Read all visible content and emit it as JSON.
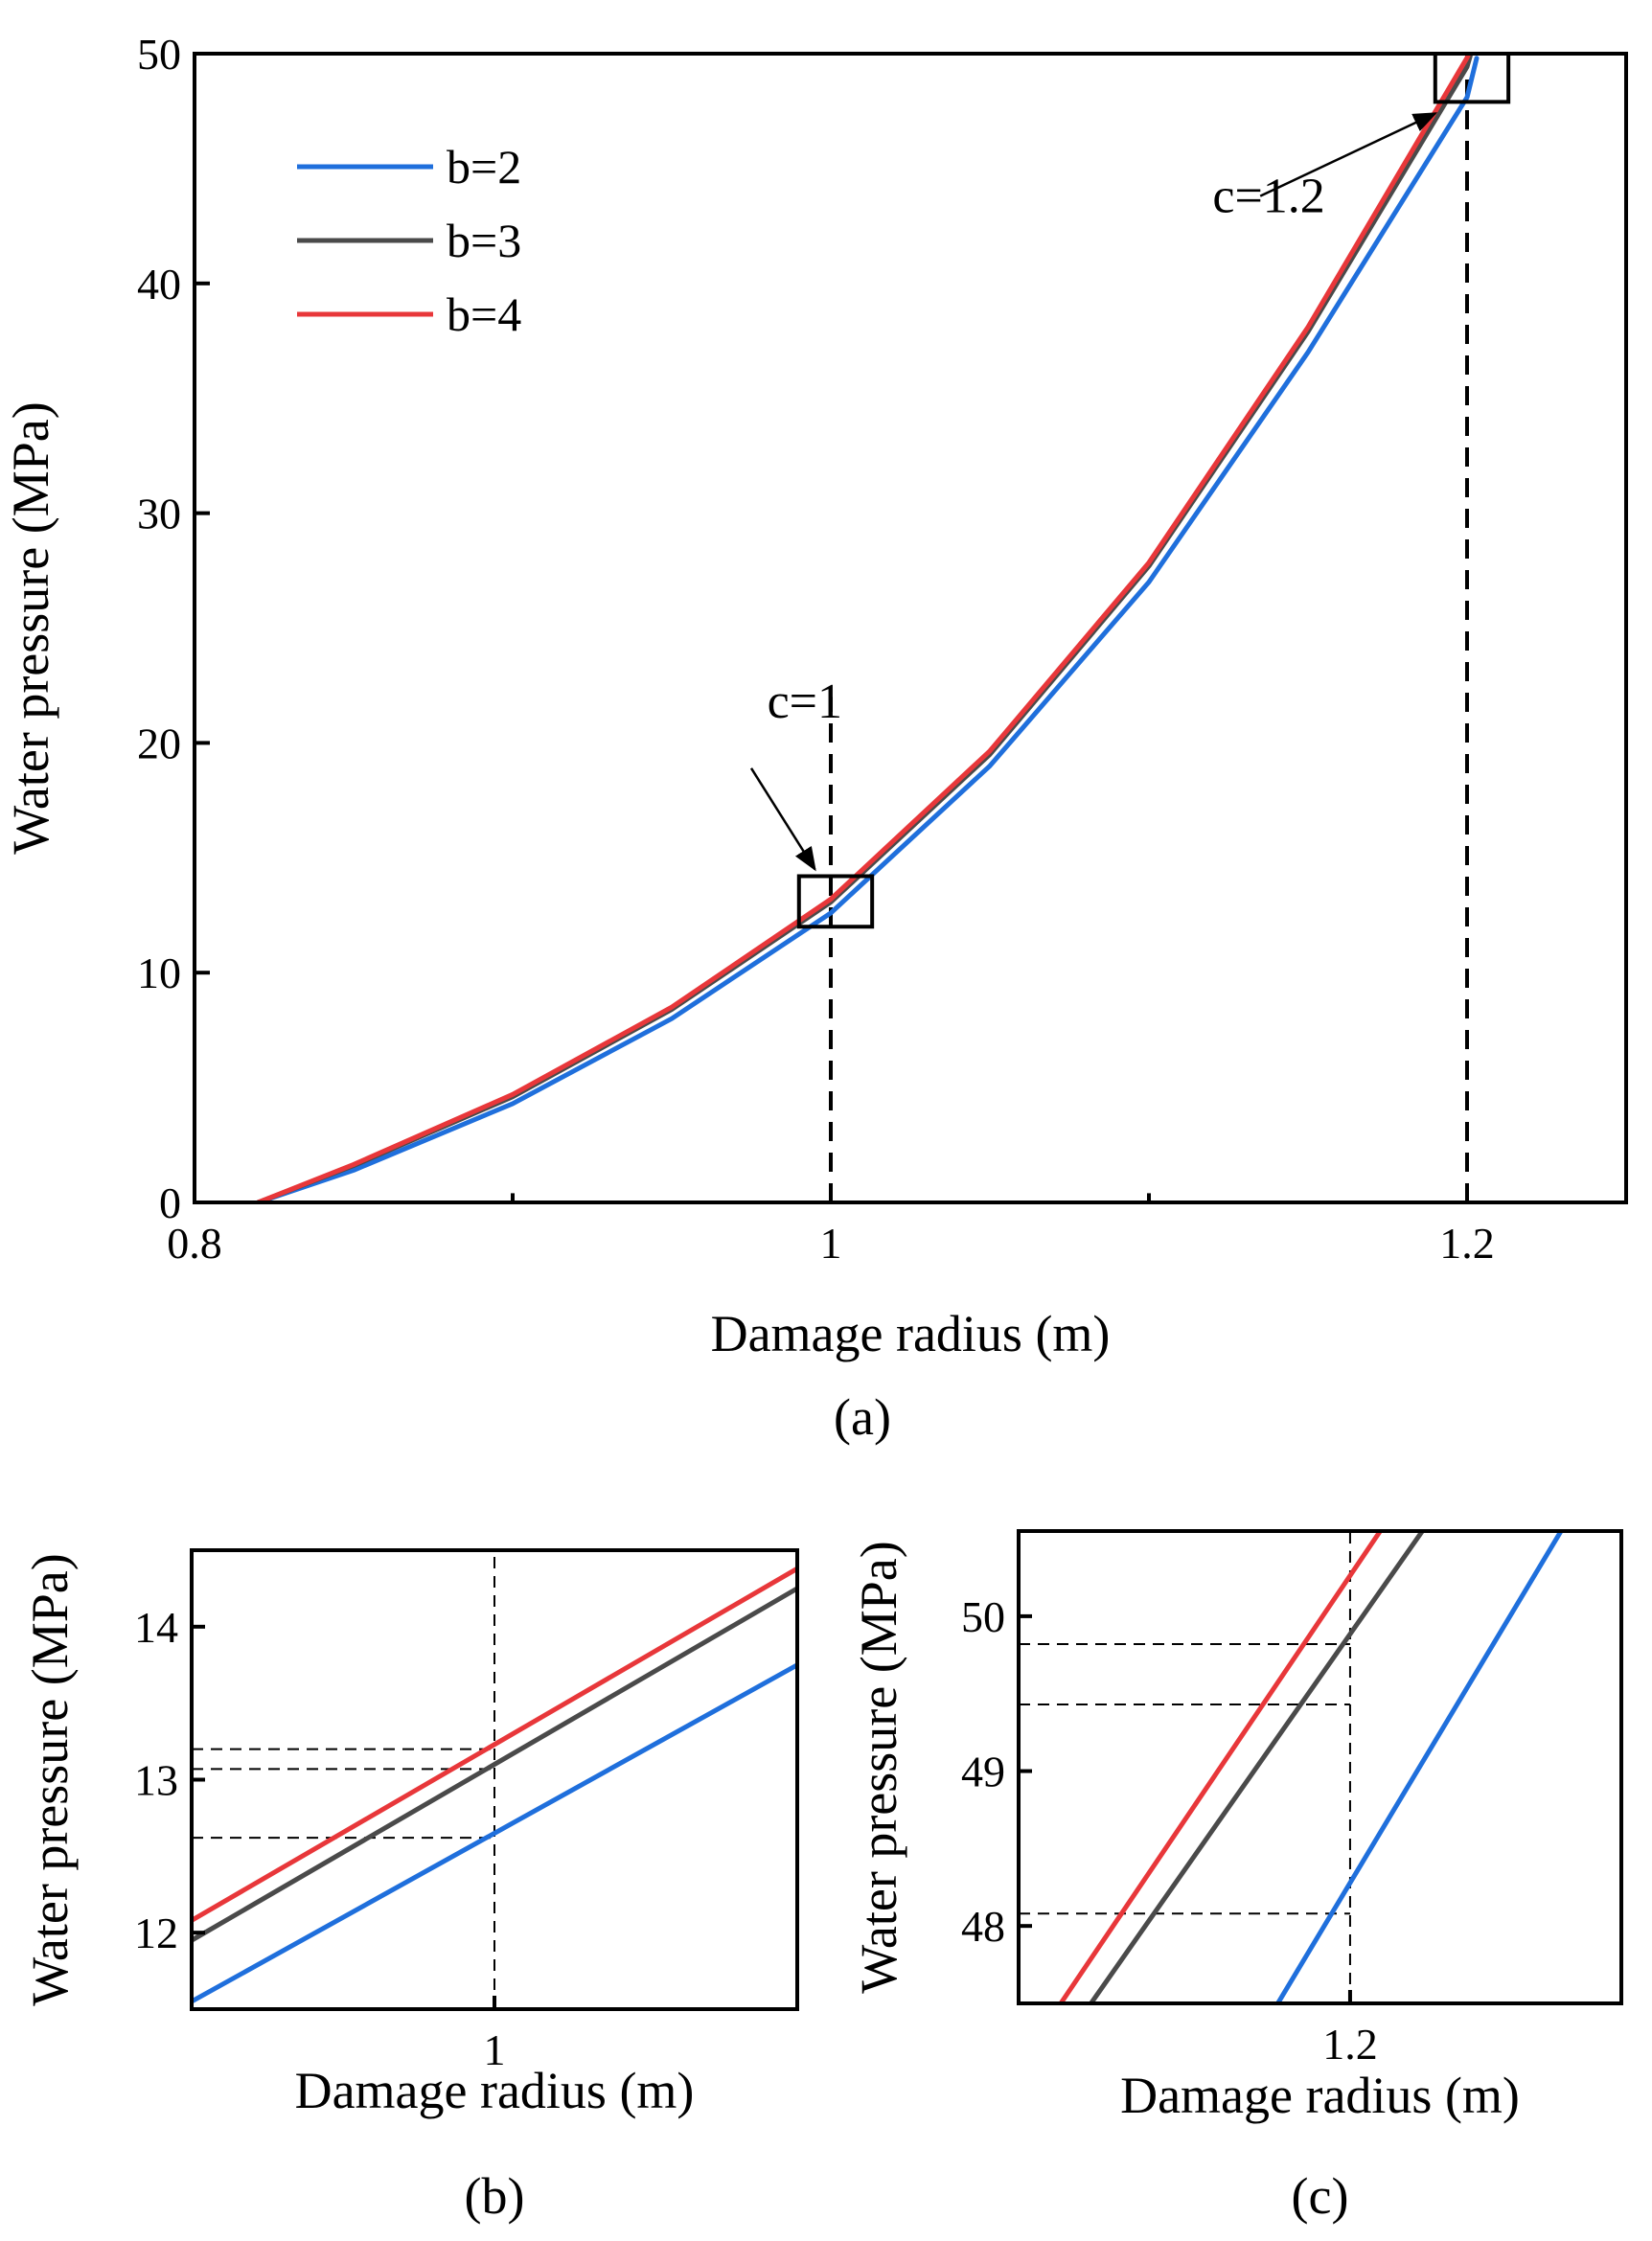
{
  "chart_data": [
    {
      "id": "a",
      "type": "line",
      "panel_label": "(a)",
      "xlabel": "Damage radius (m)",
      "ylabel": "Water pressure (MPa)",
      "xlim": [
        0.8,
        1.25
      ],
      "ylim": [
        0,
        50
      ],
      "xticks": [
        {
          "v": 0.8,
          "label": "0.8"
        },
        {
          "v": 1.0,
          "label": "1"
        },
        {
          "v": 1.2,
          "label": "1.2"
        }
      ],
      "xminor": [
        0.9,
        1.1
      ],
      "yticks": [
        {
          "v": 0,
          "label": "0"
        },
        {
          "v": 10,
          "label": "10"
        },
        {
          "v": 20,
          "label": "20"
        },
        {
          "v": 30,
          "label": "30"
        },
        {
          "v": 40,
          "label": "40"
        },
        {
          "v": 50,
          "label": "50"
        }
      ],
      "legend_position": "top-left",
      "series": [
        {
          "name": "b=2",
          "color": "#1f6fdc",
          "x": [
            0.82,
            0.85,
            0.9,
            0.95,
            1.0,
            1.05,
            1.1,
            1.15,
            1.2,
            1.203
          ],
          "y": [
            0,
            1.4,
            4.3,
            8.0,
            12.6,
            19.0,
            27.0,
            37.0,
            48.1,
            49.8
          ]
        },
        {
          "name": "b=3",
          "color": "#4a4a4a",
          "x": [
            0.82,
            0.85,
            0.9,
            0.95,
            1.0,
            1.05,
            1.1,
            1.15,
            1.2,
            1.201
          ],
          "y": [
            0,
            1.6,
            4.6,
            8.4,
            13.07,
            19.5,
            27.7,
            37.9,
            49.43,
            49.9
          ]
        },
        {
          "name": "b=4",
          "color": "#e8373a",
          "x": [
            0.82,
            0.85,
            0.9,
            0.95,
            1.0,
            1.05,
            1.1,
            1.15,
            1.2,
            1.2005
          ],
          "y": [
            0,
            1.65,
            4.7,
            8.5,
            13.2,
            19.65,
            27.85,
            38.1,
            49.82,
            49.98
          ]
        }
      ],
      "vlines": [
        {
          "x": 1.0,
          "y_top": 22
        },
        {
          "x": 1.2,
          "y_top": 50
        }
      ],
      "boxes": [
        {
          "x0": 0.99,
          "x1": 1.013,
          "y0": 12.0,
          "y1": 14.2
        },
        {
          "x0": 1.19,
          "x1": 1.213,
          "y0": 47.9,
          "y1": 50
        }
      ],
      "annotations": [
        {
          "text": "c=1",
          "text_x": 0.98,
          "text_y": 21.1,
          "arrow_from": [
            0.975,
            18.9
          ],
          "arrow_to": [
            0.995,
            14.5
          ]
        },
        {
          "text": "c=1.2",
          "text_x": 1.12,
          "text_y": 43.1,
          "arrow_from": [
            1.135,
            43.8
          ],
          "arrow_to": [
            1.19,
            47.4
          ]
        }
      ]
    },
    {
      "id": "b",
      "type": "line",
      "panel_label": "(b)",
      "xlabel": "Damage radius (m)",
      "ylabel": "Water pressure (MPa)",
      "xlim": [
        0.99,
        1.01
      ],
      "ylim": [
        11.5,
        14.5
      ],
      "xticks": [
        {
          "v": 1.0,
          "label": "1"
        }
      ],
      "xminor": [],
      "yticks": [
        {
          "v": 12,
          "label": "12"
        },
        {
          "v": 13,
          "label": "13"
        },
        {
          "v": 14,
          "label": "14"
        }
      ],
      "series": [
        {
          "name": "b=2",
          "color": "#1f6fdc",
          "x": [
            0.99,
            1.01
          ],
          "y": [
            11.55,
            13.75
          ]
        },
        {
          "name": "b=3",
          "color": "#4a4a4a",
          "x": [
            0.99,
            1.01
          ],
          "y": [
            11.95,
            14.25
          ]
        },
        {
          "name": "b=4",
          "color": "#e8373a",
          "x": [
            0.99,
            1.01
          ],
          "y": [
            12.08,
            14.38
          ]
        }
      ],
      "vline": 1.0,
      "hlines": [
        12.62,
        13.07,
        13.2
      ]
    },
    {
      "id": "c",
      "type": "line",
      "panel_label": "(c)",
      "xlabel": "Damage radius (m)",
      "ylabel": "Water pressure (MPa)",
      "xlim": [
        1.1945,
        1.2045
      ],
      "ylim": [
        47.5,
        50.55
      ],
      "xticks": [
        {
          "v": 1.2,
          "label": "1.2"
        }
      ],
      "xminor": [],
      "yticks": [
        {
          "v": 48,
          "label": "48"
        },
        {
          "v": 49,
          "label": "49"
        },
        {
          "v": 50,
          "label": "50"
        }
      ],
      "series": [
        {
          "name": "b=2",
          "color": "#1f6fdc",
          "x": [
            1.1988,
            1.2035
          ],
          "y": [
            47.5,
            50.55
          ]
        },
        {
          "name": "b=3",
          "color": "#4a4a4a",
          "x": [
            1.1957,
            1.2012
          ],
          "y": [
            47.5,
            50.55
          ]
        },
        {
          "name": "b=4",
          "color": "#e8373a",
          "x": [
            1.1952,
            1.2005
          ],
          "y": [
            47.5,
            50.55
          ]
        }
      ],
      "vline": 1.2,
      "hlines": [
        48.08,
        49.43,
        49.82
      ]
    }
  ]
}
